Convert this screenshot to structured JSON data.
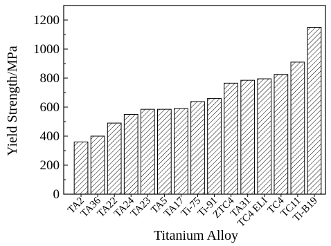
{
  "chart_data": {
    "type": "bar",
    "xlabel": "Titanium Alloy",
    "ylabel": "Yield Strength/MPa",
    "ylim": [
      0,
      1300
    ],
    "yticks": [
      0,
      200,
      400,
      600,
      800,
      1000,
      1200
    ],
    "grid": false,
    "bar_pattern": "diagonal-hatch",
    "bar_color": "#000000",
    "categories": [
      "TA2",
      "TA36",
      "TA22",
      "TA24",
      "TA23",
      "TA5",
      "TA17",
      "Ti-75",
      "Ti-91",
      "ZTC4",
      "TA31",
      "TC4 ELI",
      "TC4",
      "TC11",
      "Ti-B19"
    ],
    "values": [
      360,
      400,
      490,
      550,
      585,
      585,
      590,
      638,
      660,
      765,
      785,
      795,
      825,
      910,
      1150
    ]
  }
}
